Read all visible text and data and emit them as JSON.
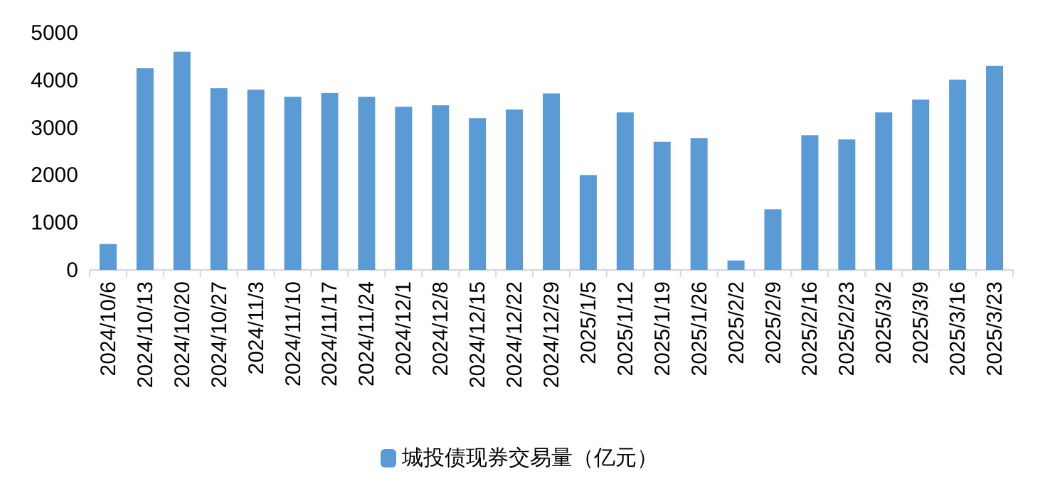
{
  "chart_data": {
    "type": "bar",
    "categories": [
      "2024/10/6",
      "2024/10/13",
      "2024/10/20",
      "2024/10/27",
      "2024/11/3",
      "2024/11/10",
      "2024/11/17",
      "2024/11/24",
      "2024/12/1",
      "2024/12/8",
      "2024/12/15",
      "2024/12/22",
      "2024/12/29",
      "2025/1/5",
      "2025/1/12",
      "2025/1/19",
      "2025/1/26",
      "2025/2/2",
      "2025/2/9",
      "2025/2/16",
      "2025/2/23",
      "2025/3/2",
      "2025/3/9",
      "2025/3/16",
      "2025/3/23"
    ],
    "series": [
      {
        "name": "城投债现券交易量（亿元）",
        "color": "#5b9bd5",
        "values": [
          550,
          4250,
          4600,
          3830,
          3800,
          3650,
          3730,
          3650,
          3440,
          3470,
          3200,
          3380,
          3720,
          2000,
          3320,
          2700,
          2780,
          200,
          1280,
          2840,
          2750,
          3320,
          3590,
          4010,
          4300
        ]
      }
    ],
    "ylim": [
      0,
      5000
    ],
    "yticks": [
      0,
      1000,
      2000,
      3000,
      4000,
      5000
    ],
    "grid": false,
    "legend": "bottom"
  }
}
